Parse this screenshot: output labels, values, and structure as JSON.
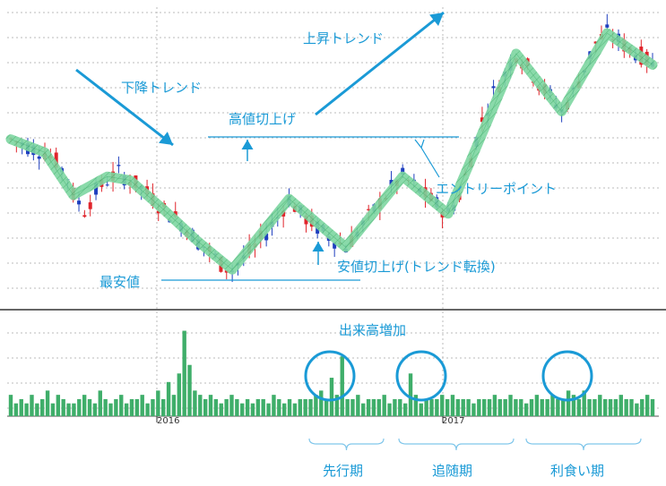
{
  "chart_data": {
    "type": "candlestick",
    "annotations": {
      "downtrend": "下降トレンド",
      "uptrend": "上昇トレンド",
      "higher_high": "高値切上げ",
      "entry_point": "エントリーポイント",
      "lowest_low": "最安値",
      "higher_low": "安値切上げ(トレンド転換)",
      "volume_increase": "出来高増加",
      "phase_leading": "先行期",
      "phase_following": "追随期",
      "phase_profit": "利食い期"
    },
    "x_ticks": [
      "2016",
      "2017"
    ],
    "trend_path": [
      [
        0,
        100
      ],
      [
        4,
        95
      ],
      [
        6,
        93
      ],
      [
        8,
        88
      ],
      [
        10,
        80
      ],
      [
        11,
        70
      ],
      [
        13,
        62
      ],
      [
        15,
        72
      ],
      [
        17,
        78
      ],
      [
        19,
        82
      ],
      [
        21,
        78
      ],
      [
        23,
        74
      ],
      [
        25,
        68
      ],
      [
        27,
        62
      ],
      [
        29,
        58
      ],
      [
        31,
        52
      ],
      [
        33,
        45
      ],
      [
        35,
        40
      ],
      [
        37,
        33
      ],
      [
        39,
        30
      ],
      [
        41,
        36
      ],
      [
        43,
        42
      ],
      [
        45,
        50
      ],
      [
        47,
        58
      ],
      [
        49,
        68
      ],
      [
        51,
        60
      ],
      [
        53,
        55
      ],
      [
        55,
        50
      ],
      [
        57,
        46
      ],
      [
        59,
        42
      ],
      [
        61,
        50
      ],
      [
        63,
        58
      ],
      [
        65,
        66
      ],
      [
        67,
        74
      ],
      [
        69,
        80
      ],
      [
        71,
        75
      ],
      [
        73,
        70
      ],
      [
        75,
        65
      ],
      [
        77,
        60
      ],
      [
        79,
        70
      ],
      [
        81,
        90
      ],
      [
        83,
        110
      ],
      [
        85,
        125
      ],
      [
        87,
        135
      ],
      [
        89,
        146
      ],
      [
        91,
        139
      ],
      [
        93,
        130
      ],
      [
        95,
        123
      ],
      [
        97,
        115
      ],
      [
        99,
        125
      ],
      [
        101,
        138
      ],
      [
        103,
        152
      ],
      [
        105,
        157
      ],
      [
        107,
        153
      ],
      [
        109,
        148
      ],
      [
        111,
        145
      ],
      [
        113,
        140
      ]
    ],
    "volume": [
      5,
      3,
      4,
      3,
      5,
      3,
      4,
      6,
      3,
      5,
      4,
      3,
      3,
      4,
      5,
      4,
      3,
      6,
      4,
      3,
      4,
      5,
      3,
      4,
      4,
      5,
      3,
      4,
      6,
      4,
      8,
      5,
      10,
      20,
      12,
      6,
      5,
      4,
      5,
      4,
      3,
      4,
      5,
      4,
      3,
      4,
      3,
      4,
      4,
      3,
      5,
      4,
      3,
      4,
      3,
      4,
      4,
      4,
      5,
      6,
      4,
      9,
      5,
      14,
      4,
      4,
      5,
      3,
      4,
      4,
      4,
      5,
      3,
      4,
      4,
      3,
      10,
      5,
      3,
      4,
      4,
      4,
      5,
      4,
      5,
      4,
      4,
      4,
      3,
      4,
      4,
      4,
      5,
      4,
      4,
      5,
      4,
      4,
      3,
      4,
      5,
      4,
      4,
      5,
      4,
      4,
      6,
      5,
      4,
      6,
      4,
      4,
      5,
      4,
      4,
      4,
      5,
      4,
      4,
      3,
      4,
      5,
      4
    ],
    "volume_highlights": [
      32,
      33,
      63,
      92
    ]
  }
}
